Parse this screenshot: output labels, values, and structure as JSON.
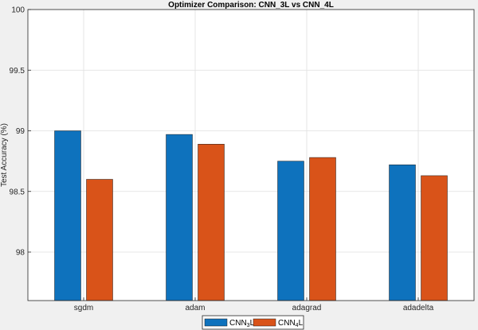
{
  "chart_data": {
    "type": "bar",
    "title": "Optimizer Comparison: CNN_3L vs CNN_4L",
    "xlabel": "",
    "ylabel": "Test Accuracy (%)",
    "categories": [
      "sgdm",
      "adam",
      "adagrad",
      "adadelta"
    ],
    "series": [
      {
        "name": "CNN3L",
        "display": {
          "base": "CNN",
          "sub": "3",
          "tail": "L"
        },
        "color": "#0e72bd",
        "values": [
          99.0,
          98.97,
          98.75,
          98.72
        ]
      },
      {
        "name": "CNN4L",
        "display": {
          "base": "CNN",
          "sub": "4",
          "tail": "L"
        },
        "color": "#d95319",
        "values": [
          98.6,
          98.89,
          98.78,
          98.63
        ]
      }
    ],
    "ylim": [
      97.6,
      100
    ],
    "yticks": [
      98,
      98.5,
      99,
      99.5,
      100
    ],
    "ytick_labels": [
      "98",
      "98.5",
      "99",
      "99.5",
      "100"
    ],
    "grid": true,
    "legend_position": "bottom-center"
  }
}
